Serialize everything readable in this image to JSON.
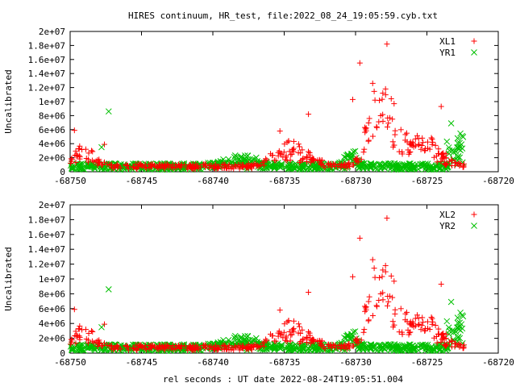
{
  "title": "HIRES continuum, HR_test, file:2022_08_24_19:05:59.cyb.txt",
  "xlabel": "rel seconds : UT date 2022-08-24T19:05:51.004",
  "colors": {
    "red": "#ff0000",
    "green": "#00c000"
  },
  "chart_data": [
    {
      "type": "scatter",
      "ylabel": "Uncalibrated",
      "xlim": [
        -68750,
        -68720
      ],
      "ylim": [
        0,
        20000000
      ],
      "x_ticks": [
        "-68750",
        "-68745",
        "-68740",
        "-68735",
        "-68730",
        "-68725",
        "-68720"
      ],
      "y_ticks": [
        "0",
        "2e+06",
        "4e+06",
        "6e+06",
        "8e+06",
        "1e+07",
        "1.2e+07",
        "1.4e+07",
        "1.6e+07",
        "1.8e+07",
        "2e+07"
      ],
      "legend_position": "top-right",
      "series": [
        {
          "name": "XL1",
          "marker": "+",
          "color": "#ff0000"
        },
        {
          "name": "YR1",
          "marker": "x",
          "color": "#00c000"
        }
      ]
    },
    {
      "type": "scatter",
      "ylabel": "Uncalibrated",
      "xlim": [
        -68750,
        -68720
      ],
      "ylim": [
        0,
        20000000
      ],
      "x_ticks": [
        "-68750",
        "-68745",
        "-68740",
        "-68735",
        "-68730",
        "-68725",
        "-68720"
      ],
      "y_ticks": [
        "0",
        "2e+06",
        "4e+06",
        "6e+06",
        "8e+06",
        "1e+07",
        "1.2e+07",
        "1.4e+07",
        "1.6e+07",
        "1.8e+07",
        "2e+07"
      ],
      "legend_position": "top-right",
      "series": [
        {
          "name": "XL2",
          "marker": "+",
          "color": "#ff0000"
        },
        {
          "name": "YR2",
          "marker": "x",
          "color": "#00c000"
        }
      ]
    }
  ],
  "points": {
    "red_outliers": [
      [
        -68749.7,
        5900000
      ],
      [
        -68749.4,
        3300000
      ],
      [
        -68748.9,
        3200000
      ],
      [
        -68748.5,
        3000000
      ],
      [
        -68747.6,
        3900000
      ],
      [
        -68735.3,
        5800000
      ],
      [
        -68733.3,
        8200000
      ],
      [
        -68730.2,
        10300000
      ],
      [
        -68729.7,
        15500000
      ],
      [
        -68728.8,
        12600000
      ],
      [
        -68727.8,
        18200000
      ],
      [
        -68727.9,
        11800000
      ],
      [
        -68727.5,
        10400000
      ],
      [
        -68727.3,
        9700000
      ],
      [
        -68724.0,
        9300000
      ]
    ],
    "green_outliers": [
      [
        -68747.3,
        8600000
      ],
      [
        -68747.8,
        3500000
      ],
      [
        -68723.3,
        6900000
      ],
      [
        -68723.6,
        4300000
      ],
      [
        -68722.7,
        4100000
      ]
    ],
    "red_bumps": [
      {
        "center": -68749.0,
        "width": 0.9,
        "amp": 2600000
      },
      {
        "center": -68734.5,
        "width": 1.6,
        "amp": 3000000
      },
      {
        "center": -68728.4,
        "width": 1.0,
        "amp": 9500000
      },
      {
        "center": -68727.0,
        "width": 1.8,
        "amp": 3800000
      },
      {
        "center": -68724.9,
        "width": 1.4,
        "amp": 2800000
      }
    ],
    "green_bumps": [
      {
        "center": -68738.0,
        "width": 1.5,
        "amp": 1500000
      },
      {
        "center": -68722.5,
        "width": 0.6,
        "amp": 2800000
      },
      {
        "center": -68730.3,
        "width": 0.5,
        "amp": 2500000
      }
    ]
  }
}
